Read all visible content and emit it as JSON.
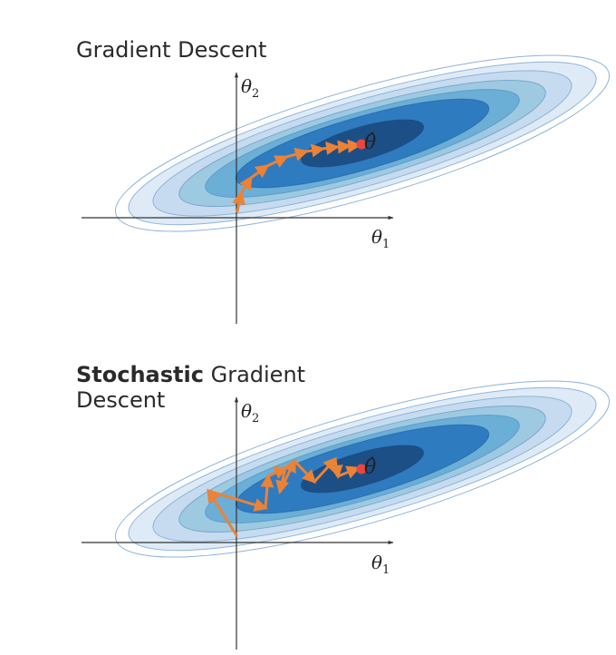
{
  "panels": [
    {
      "title_bold": "",
      "title_line1": "Gradient Descent",
      "title_line2": "",
      "x_axis_label": "θ",
      "x_axis_sub": "1",
      "y_axis_label": "θ",
      "y_axis_sub": "2",
      "optimum_label": "θ̂"
    },
    {
      "title_bold": "Stochastic",
      "title_line1": " Gradient",
      "title_line2": "Descent",
      "x_axis_label": "θ",
      "x_axis_sub": "1",
      "y_axis_label": "θ",
      "y_axis_sub": "2",
      "optimum_label": "θ̂"
    }
  ],
  "colors": {
    "contour_fills": [
      "#deebf7",
      "#c6dbef",
      "#9ecae1",
      "#6baed6",
      "#2f7bc0",
      "#1c4f86"
    ],
    "contour_stroke": "#8fb3d9",
    "path": "#ec8236",
    "optimum": "#e8483f",
    "axis": "#333333"
  }
}
